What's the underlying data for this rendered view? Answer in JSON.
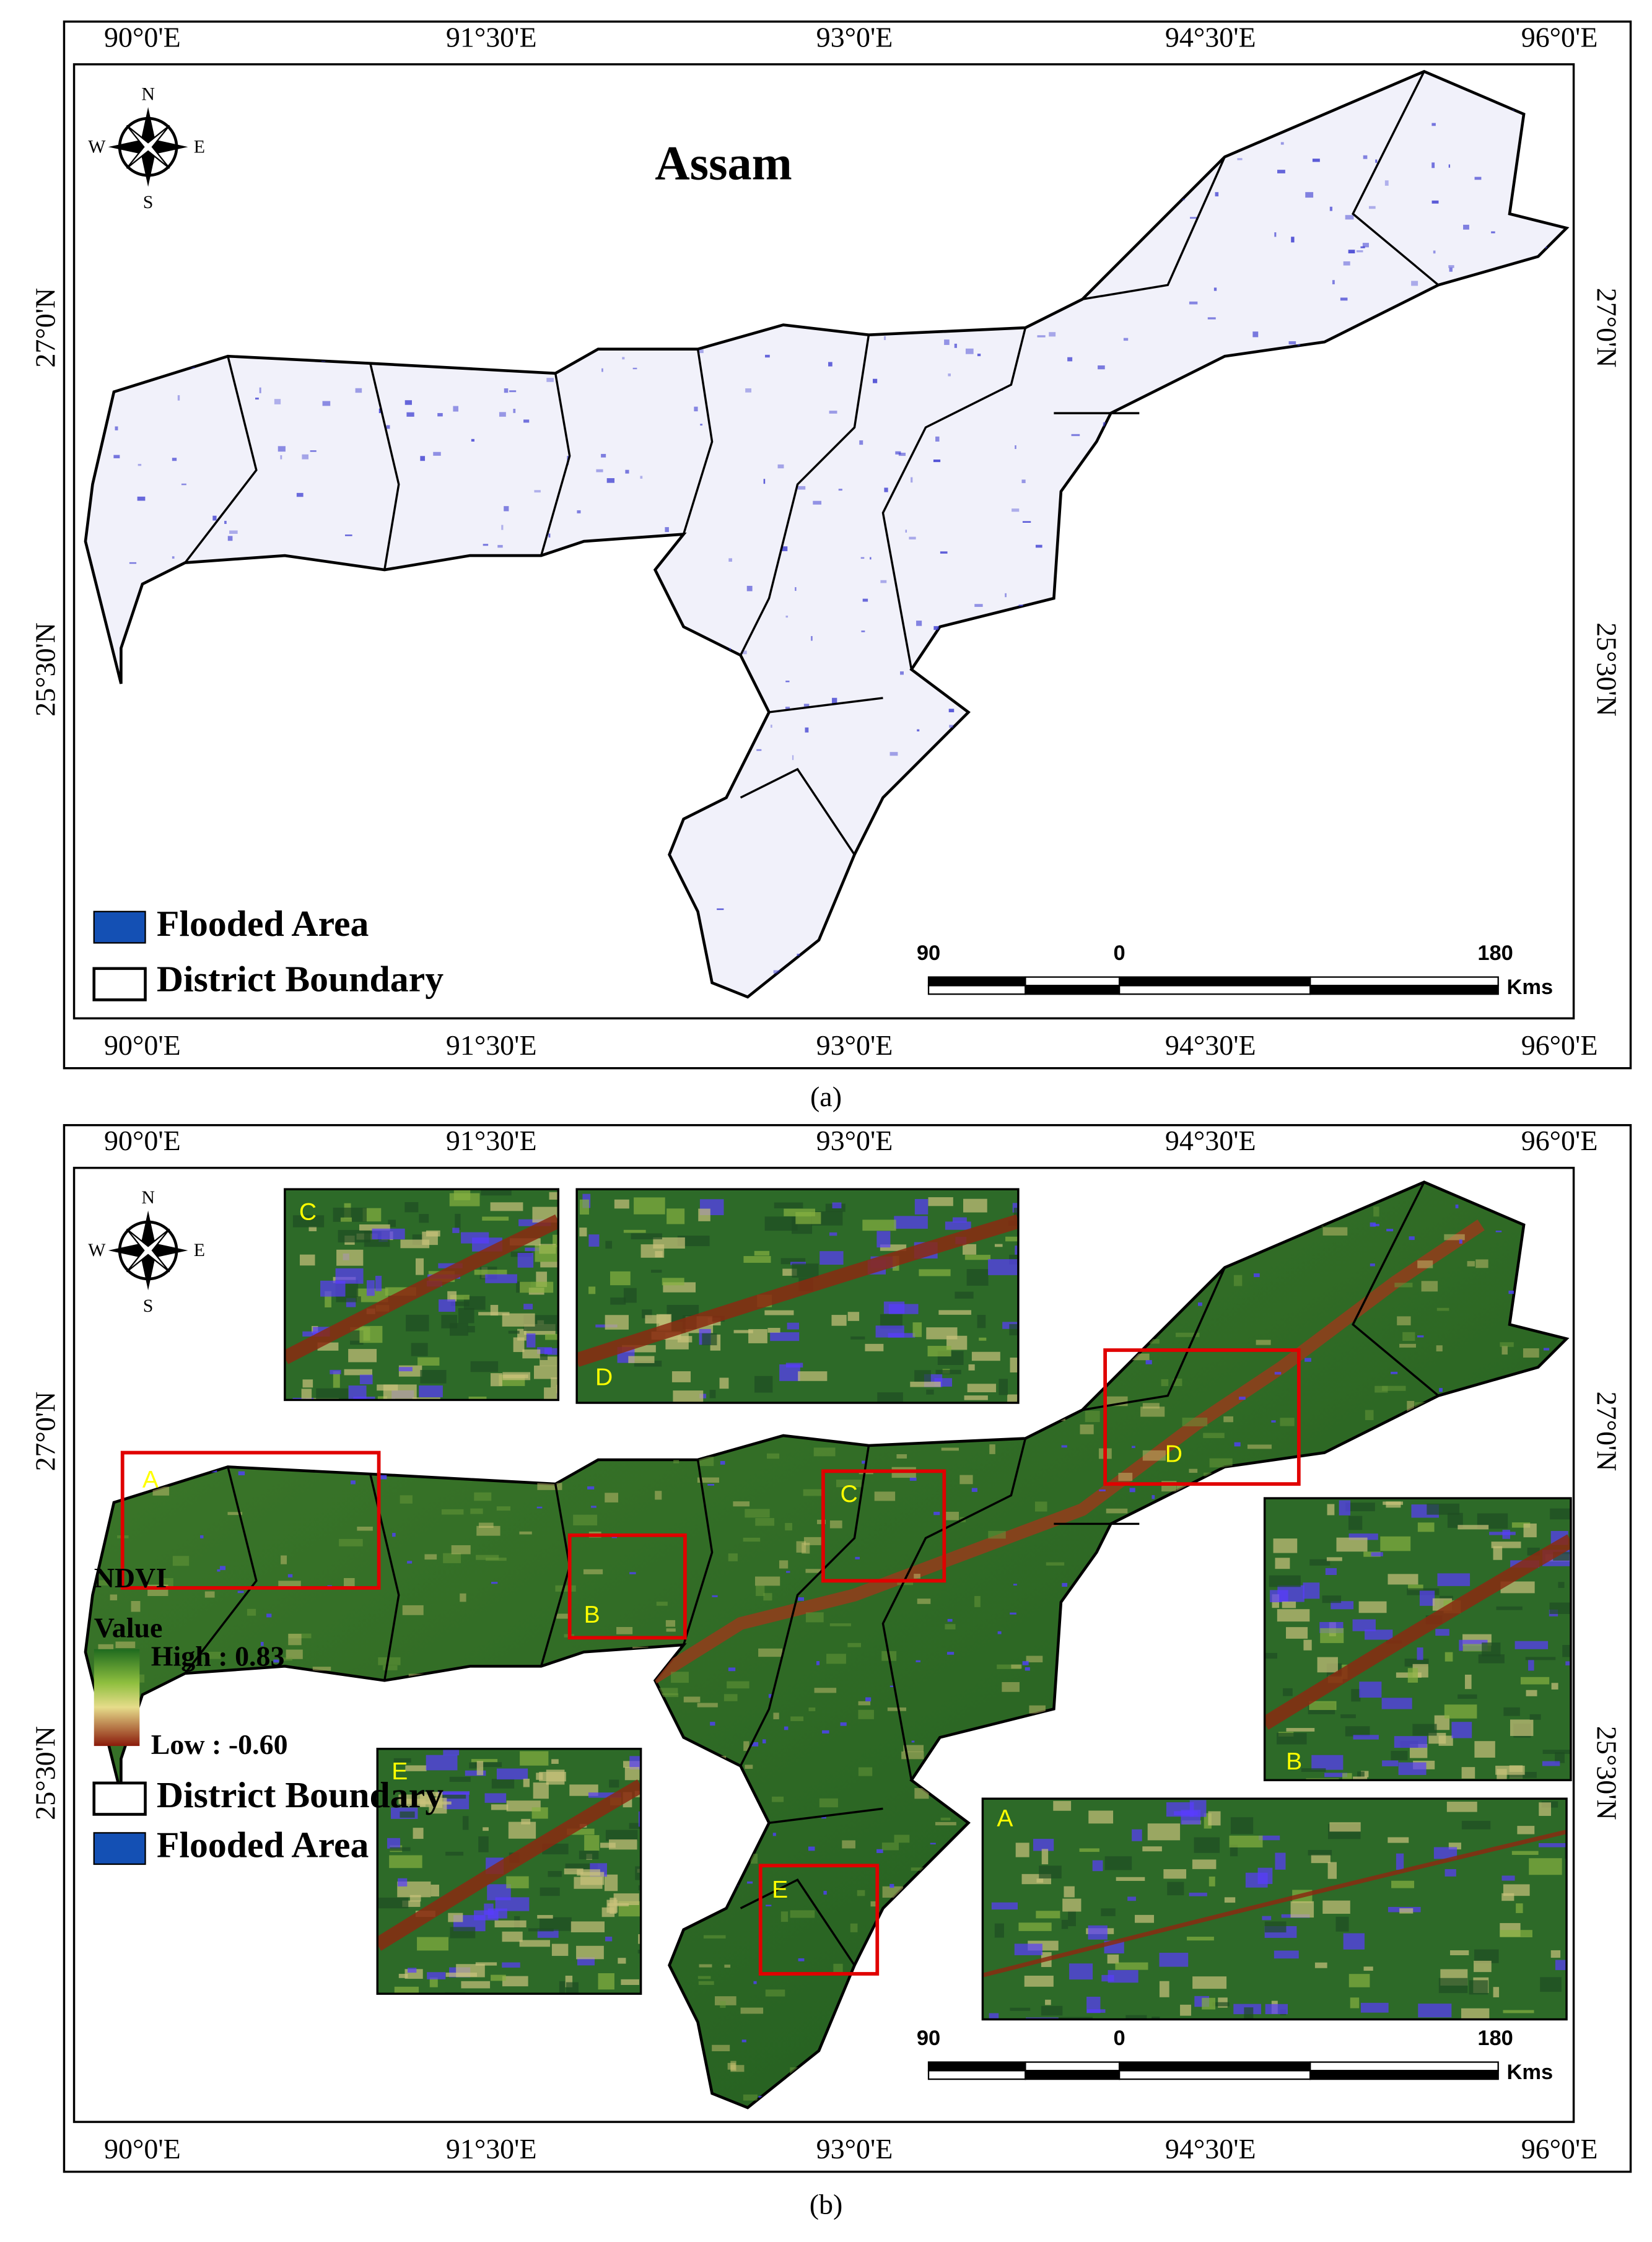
{
  "panel_a": {
    "caption": "(a)",
    "title": "Assam",
    "compass": {
      "n": "N",
      "s": "S",
      "e": "E",
      "w": "W"
    },
    "lon_labels": [
      "90°0'E",
      "91°30'E",
      "93°0'E",
      "94°30'E",
      "96°0'E"
    ],
    "lat_labels": [
      "27°0'N",
      "25°30'N"
    ],
    "legend": [
      "Flooded Area",
      "District Boundary"
    ],
    "scale_bar": {
      "labels": [
        "90",
        "0",
        "180"
      ],
      "unit": "Kms"
    }
  },
  "panel_b": {
    "caption": "(b)",
    "compass": {
      "n": "N",
      "s": "S",
      "e": "E",
      "w": "W"
    },
    "lon_labels": [
      "90°0'E",
      "91°30'E",
      "93°0'E",
      "94°30'E",
      "96°0'E"
    ],
    "lat_labels": [
      "27°0'N",
      "25°30'N"
    ],
    "legend": {
      "title": "NDVI",
      "value": "Value",
      "high": "High : 0.83",
      "low": "Low : -0.60",
      "entries": [
        "District Boundary",
        "Flooded Area"
      ]
    },
    "scale_bar": {
      "labels": [
        "90",
        "0",
        "180"
      ],
      "unit": "Kms"
    },
    "zoom_boxes": [
      "A",
      "B",
      "C",
      "D",
      "E"
    ],
    "insets": [
      "C",
      "D",
      "B",
      "E",
      "A"
    ]
  }
}
